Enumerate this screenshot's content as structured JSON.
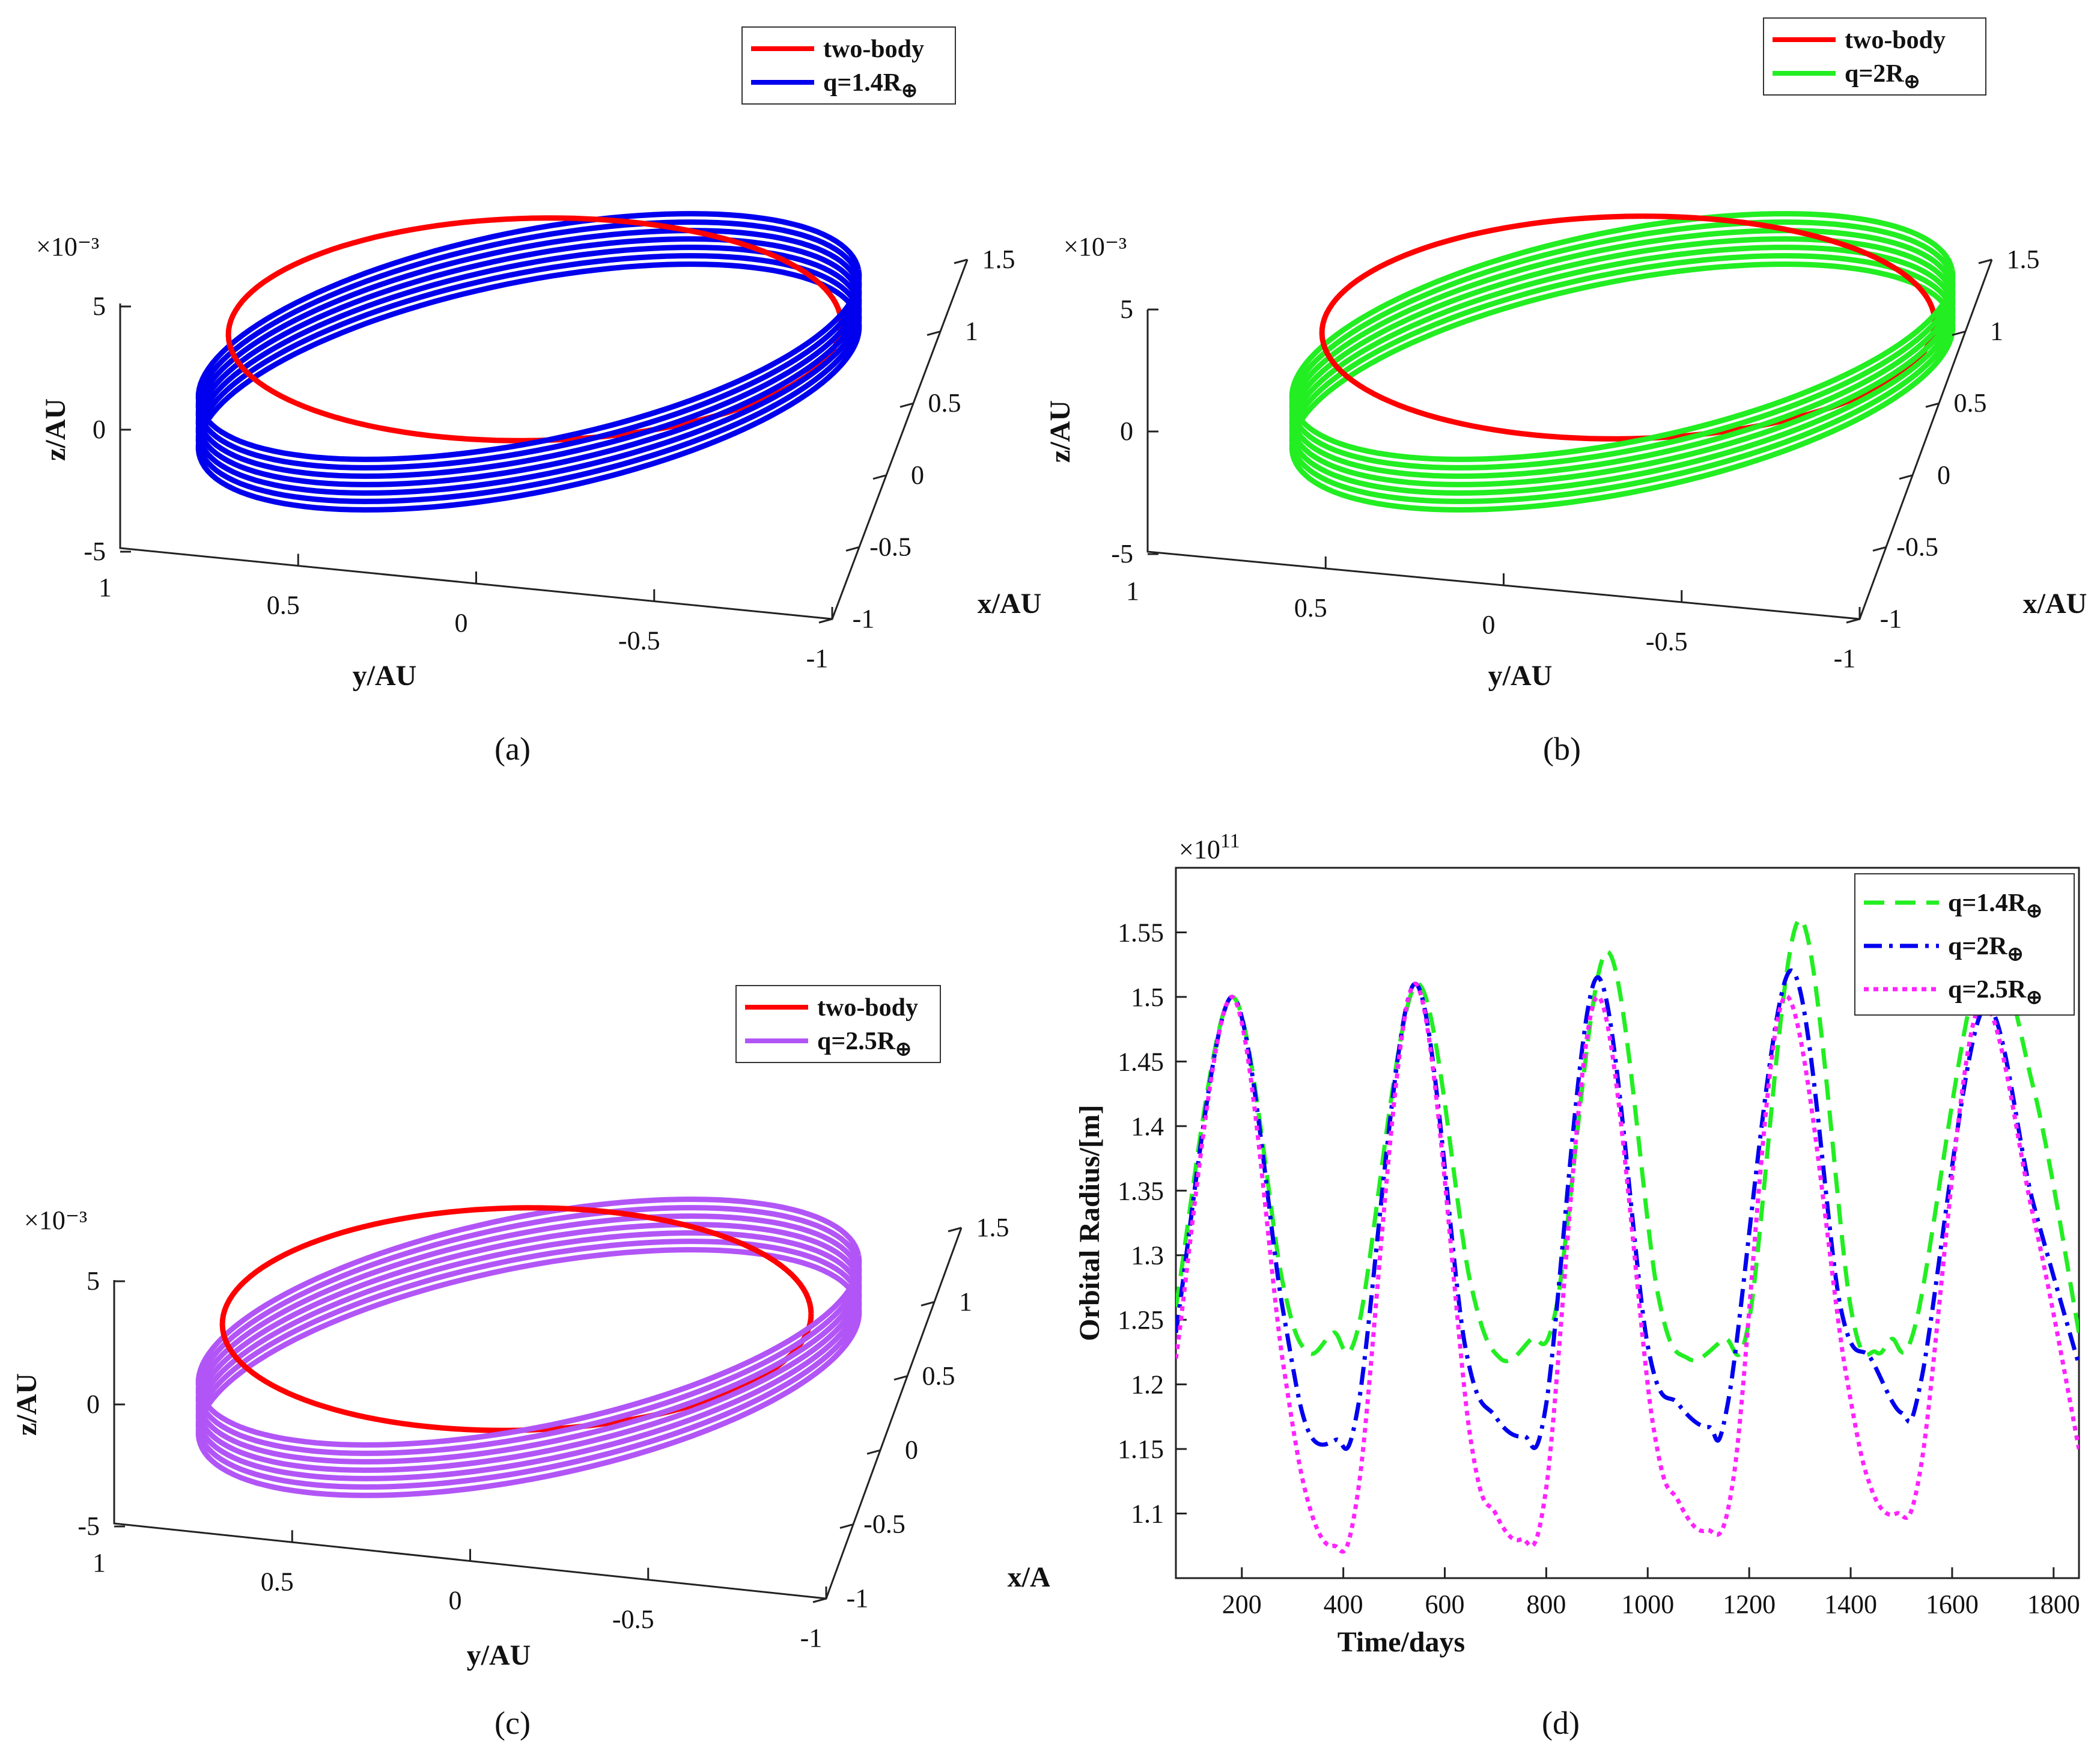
{
  "chart_data": [
    {
      "type": "line",
      "view": "3d-orbit",
      "caption": "(a)",
      "exponent": "×10⁻³",
      "zlabel": "z/AU",
      "ylabel": "y/AU",
      "xlabel": "x/AU",
      "z_ticks": [
        "5",
        "0",
        "-5"
      ],
      "y_ticks": [
        "1",
        "0.5",
        "0",
        "-0.5",
        "-1"
      ],
      "x_ticks": [
        "1.5",
        "1",
        "0.5",
        "0",
        "-0.5",
        "-1"
      ],
      "series": [
        {
          "name": "two-body",
          "color": "#ff0000"
        },
        {
          "name": "q=1.4R",
          "color": "#0000ee"
        }
      ]
    },
    {
      "type": "line",
      "view": "3d-orbit",
      "caption": "(b)",
      "exponent": "×10⁻³",
      "zlabel": "z/AU",
      "ylabel": "y/AU",
      "xlabel": "x/AU",
      "z_ticks": [
        "5",
        "0",
        "-5"
      ],
      "y_ticks": [
        "1",
        "0.5",
        "0",
        "-0.5",
        "-1"
      ],
      "x_ticks": [
        "1.5",
        "1",
        "0.5",
        "0",
        "-0.5",
        "-1"
      ],
      "series": [
        {
          "name": "two-body",
          "color": "#ff0000"
        },
        {
          "name": "q=2R",
          "color": "#22ee22"
        }
      ]
    },
    {
      "type": "line",
      "view": "3d-orbit",
      "caption": "(c)",
      "exponent": "×10⁻³",
      "zlabel": "z/AU",
      "ylabel": "y/AU",
      "xlabel": "x/AU",
      "z_ticks": [
        "5",
        "0",
        "-5"
      ],
      "y_ticks": [
        "1",
        "0.5",
        "0",
        "-0.5",
        "-1"
      ],
      "x_ticks": [
        "1.5",
        "1",
        "0.5",
        "0",
        "-0.5",
        "-1"
      ],
      "series": [
        {
          "name": "two-body",
          "color": "#ff0000"
        },
        {
          "name": "q=2.5R",
          "color": "#b255f7"
        }
      ]
    },
    {
      "type": "line",
      "caption": "(d)",
      "exponent": "×10",
      "exponent_power": "11",
      "xlabel": "Time/days",
      "ylabel": "Orbital Radius/[m]",
      "xlim": [
        70,
        1850
      ],
      "ylim": [
        1.05,
        1.6
      ],
      "x_ticks": [
        200,
        400,
        600,
        800,
        1000,
        1200,
        1400,
        1600,
        1800
      ],
      "y_ticks": [
        1.1,
        1.15,
        1.2,
        1.25,
        1.3,
        1.35,
        1.4,
        1.45,
        1.5,
        1.55
      ],
      "series": [
        {
          "name": "q=1.4R",
          "color": "#22ee22",
          "dash": "dash",
          "x": [
            70,
            180,
            280,
            330,
            380,
            430,
            545,
            650,
            710,
            770,
            820,
            920,
            1020,
            1080,
            1150,
            1200,
            1300,
            1400,
            1450,
            1480,
            1530,
            1660,
            1760,
            1850
          ],
          "y": [
            1.26,
            1.5,
            1.28,
            1.225,
            1.24,
            1.245,
            1.51,
            1.28,
            1.22,
            1.235,
            1.26,
            1.535,
            1.27,
            1.22,
            1.235,
            1.25,
            1.56,
            1.26,
            1.225,
            1.235,
            1.25,
            1.53,
            1.43,
            1.24
          ]
        },
        {
          "name": "q=2R",
          "color": "#0000ee",
          "dash": "dashdot",
          "x": [
            70,
            180,
            280,
            330,
            385,
            430,
            540,
            640,
            700,
            755,
            800,
            900,
            1000,
            1060,
            1120,
            1160,
            1280,
            1380,
            1440,
            1500,
            1540,
            1660,
            1760,
            1850
          ],
          "y": [
            1.24,
            1.5,
            1.26,
            1.165,
            1.157,
            1.185,
            1.51,
            1.23,
            1.175,
            1.16,
            1.185,
            1.515,
            1.23,
            1.185,
            1.167,
            1.19,
            1.52,
            1.26,
            1.22,
            1.178,
            1.205,
            1.49,
            1.34,
            1.215
          ]
        },
        {
          "name": "q=2.5R",
          "color": "#ff22ff",
          "dash": "dot",
          "x": [
            70,
            180,
            280,
            330,
            380,
            430,
            540,
            650,
            700,
            750,
            800,
            900,
            1010,
            1060,
            1115,
            1170,
            1270,
            1390,
            1440,
            1490,
            1540,
            1650,
            1760,
            1850
          ],
          "y": [
            1.22,
            1.5,
            1.22,
            1.11,
            1.075,
            1.12,
            1.51,
            1.16,
            1.1,
            1.08,
            1.12,
            1.5,
            1.17,
            1.11,
            1.087,
            1.13,
            1.5,
            1.21,
            1.12,
            1.1,
            1.14,
            1.49,
            1.33,
            1.15
          ]
        }
      ]
    }
  ]
}
